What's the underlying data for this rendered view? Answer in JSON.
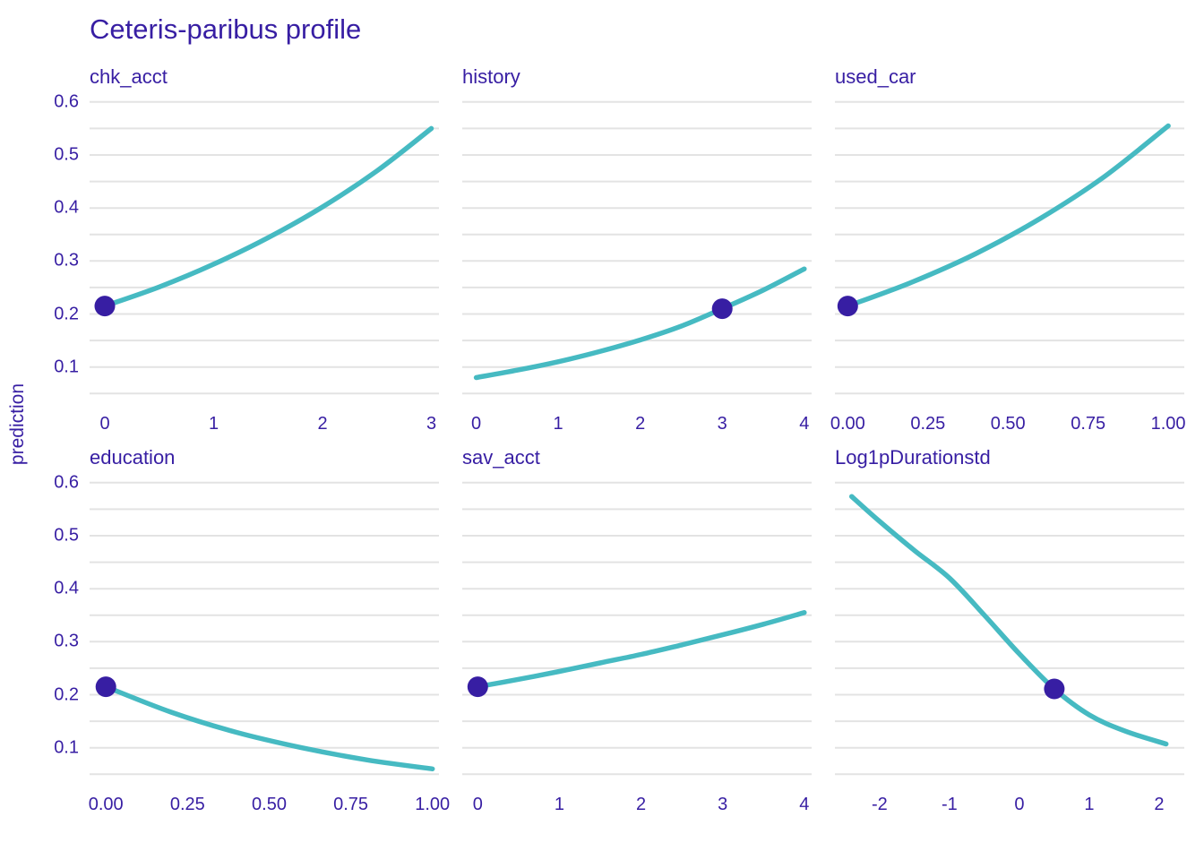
{
  "colors": {
    "background": "#ffffff",
    "text": "#371ea3",
    "line": "#46bac2",
    "point": "#371ea3",
    "grid": "#e3e3e3"
  },
  "chart_data": {
    "type": "line",
    "title": "Ceteris-paribus profile",
    "ylabel": "prediction",
    "xlabel": "",
    "grid": "horizontal-only",
    "legend": "none",
    "ylim": [
      0.02,
      0.62
    ],
    "gridline_values": [
      0.05,
      0.1,
      0.15,
      0.2,
      0.25,
      0.3,
      0.35,
      0.4,
      0.45,
      0.5,
      0.55,
      0.6
    ],
    "y_ticks": {
      "labels": [
        "0.6",
        "0.5",
        "0.4",
        "0.3",
        "0.2",
        "0.1"
      ],
      "values": [
        0.6,
        0.5,
        0.4,
        0.3,
        0.2,
        0.1
      ]
    },
    "panels": [
      {
        "facet": "chk_acct",
        "xlim": [
          -0.14,
          3.07
        ],
        "x_ticks": {
          "labels": [
            "0",
            "1",
            "2",
            "3"
          ],
          "values": [
            0,
            1,
            2,
            3
          ]
        },
        "curve": [
          [
            0,
            0.215
          ],
          [
            0.5,
            0.251
          ],
          [
            1,
            0.294
          ],
          [
            1.5,
            0.344
          ],
          [
            2,
            0.402
          ],
          [
            2.5,
            0.47
          ],
          [
            3,
            0.55
          ]
        ],
        "marker": [
          0,
          0.215
        ]
      },
      {
        "facet": "history",
        "xlim": [
          -0.17,
          4.09
        ],
        "x_ticks": {
          "labels": [
            "0",
            "1",
            "2",
            "3",
            "4"
          ],
          "values": [
            0,
            1,
            2,
            3,
            4
          ]
        },
        "curve": [
          [
            0,
            0.08
          ],
          [
            0.5,
            0.094
          ],
          [
            1,
            0.11
          ],
          [
            1.5,
            0.129
          ],
          [
            2,
            0.151
          ],
          [
            2.5,
            0.177
          ],
          [
            3,
            0.21
          ],
          [
            3.5,
            0.245
          ],
          [
            4,
            0.285
          ]
        ],
        "marker": [
          3,
          0.21
        ]
      },
      {
        "facet": "used_car",
        "xlim": [
          -0.04,
          1.05
        ],
        "x_ticks": {
          "labels": [
            "0.00",
            "0.25",
            "0.50",
            "0.75",
            "1.00"
          ],
          "values": [
            0,
            0.25,
            0.5,
            0.75,
            1
          ]
        },
        "curve": [
          [
            0,
            0.215
          ],
          [
            0.2,
            0.26
          ],
          [
            0.4,
            0.314
          ],
          [
            0.6,
            0.38
          ],
          [
            0.8,
            0.459
          ],
          [
            1,
            0.555
          ]
        ],
        "marker": [
          0,
          0.215
        ]
      },
      {
        "facet": "education",
        "xlim": [
          -0.05,
          1.02
        ],
        "x_ticks": {
          "labels": [
            "0.00",
            "0.25",
            "0.50",
            "0.75",
            "1.00"
          ],
          "values": [
            0,
            0.25,
            0.5,
            0.75,
            1
          ]
        },
        "curve": [
          [
            0,
            0.215
          ],
          [
            0.2,
            0.167
          ],
          [
            0.4,
            0.129
          ],
          [
            0.6,
            0.1
          ],
          [
            0.8,
            0.077
          ],
          [
            1,
            0.06
          ]
        ],
        "marker": [
          0,
          0.215
        ]
      },
      {
        "facet": "sav_acct",
        "xlim": [
          -0.19,
          4.09
        ],
        "x_ticks": {
          "labels": [
            "0",
            "1",
            "2",
            "3",
            "4"
          ],
          "values": [
            0,
            1,
            2,
            3,
            4
          ]
        },
        "curve": [
          [
            0,
            0.215
          ],
          [
            0.5,
            0.229
          ],
          [
            1,
            0.244
          ],
          [
            1.5,
            0.26
          ],
          [
            2,
            0.276
          ],
          [
            2.5,
            0.294
          ],
          [
            3,
            0.313
          ],
          [
            3.5,
            0.333
          ],
          [
            4,
            0.355
          ]
        ],
        "marker": [
          0,
          0.215
        ]
      },
      {
        "facet": "Log1pDurationstd",
        "xlim": [
          -2.64,
          2.36
        ],
        "x_ticks": {
          "labels": [
            "-2",
            "-1",
            "0",
            "1",
            "2"
          ],
          "values": [
            -2,
            -1,
            0,
            1,
            2
          ]
        },
        "curve": [
          [
            -2.4,
            0.574
          ],
          [
            -2,
            0.527
          ],
          [
            -1.5,
            0.472
          ],
          [
            -1,
            0.42
          ],
          [
            -0.5,
            0.35
          ],
          [
            0,
            0.277
          ],
          [
            0.5,
            0.211
          ],
          [
            1,
            0.162
          ],
          [
            1.5,
            0.132
          ],
          [
            2.1,
            0.107
          ]
        ],
        "marker": [
          0.5,
          0.211
        ]
      }
    ]
  }
}
